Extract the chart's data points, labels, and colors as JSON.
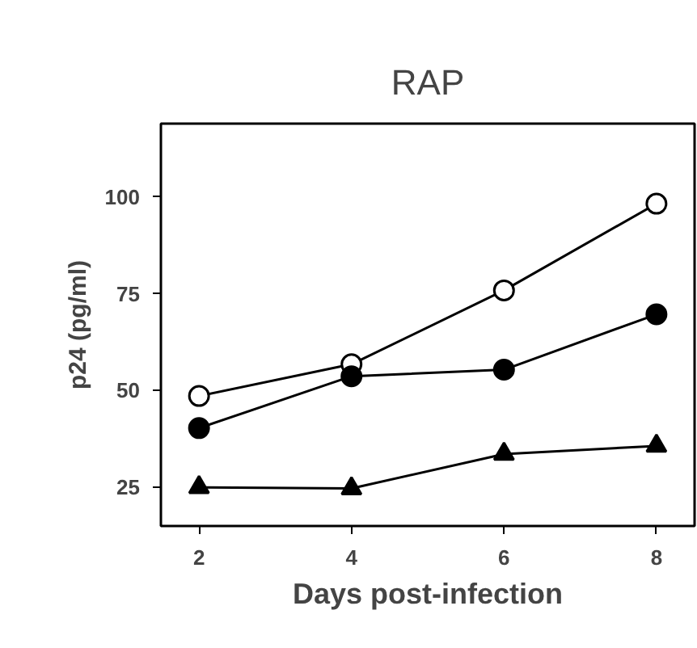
{
  "chart_data": {
    "type": "line",
    "title": "RAP",
    "xlabel": "Days post-infection",
    "ylabel": "p24 (pg/ml)",
    "x": [
      2,
      4,
      6,
      8
    ],
    "series": [
      {
        "color": "#ffffff",
        "marker": "circle",
        "values": [
          48.6,
          56.8,
          75.9,
          98.3
        ]
      },
      {
        "color": "#000000",
        "marker": "circle",
        "values": [
          40.3,
          53.7,
          55.4,
          69.7
        ]
      },
      {
        "color": "#000000",
        "marker": "triangle",
        "values": [
          25,
          24.7,
          33.6,
          35.7
        ]
      }
    ],
    "xlim": [
      1.5,
      8.5
    ],
    "ylim": [
      15,
      119
    ],
    "xticks": [
      2,
      4,
      6,
      8
    ],
    "yticks": [
      25,
      50,
      75,
      100
    ],
    "grid": false
  }
}
